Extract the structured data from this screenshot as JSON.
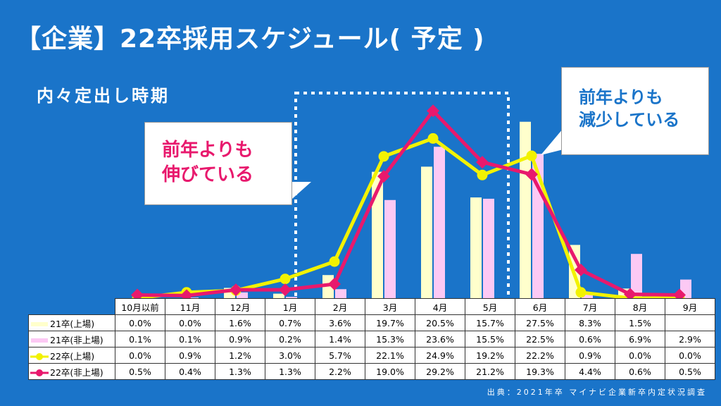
{
  "title": "【企業】22卒採用スケジュール( 予定 )",
  "subtitle": "内々定出し時期",
  "callouts": {
    "left": [
      "前年よりも",
      "伸びている"
    ],
    "right": [
      "前年よりも",
      "減少している"
    ]
  },
  "source": "出典：2021年卒 マイナビ企業新卒内定状況調査",
  "colors": {
    "background": "#1a74c9",
    "bar_21_listed": "#ffffcc",
    "bar_21_unlisted": "#fcc9f4",
    "line_22_listed": "#f2f200",
    "line_22_unlisted": "#e8196d"
  },
  "chart_data": {
    "type": "bar",
    "categories": [
      "10月以前",
      "11月",
      "12月",
      "1月",
      "2月",
      "3月",
      "4月",
      "5月",
      "6月",
      "7月",
      "8月",
      "9月"
    ],
    "series": [
      {
        "name": "21卒(上場)",
        "kind": "bar",
        "values": [
          0.0,
          0.0,
          1.6,
          0.7,
          3.6,
          19.7,
          20.5,
          15.7,
          27.5,
          8.3,
          1.5,
          null
        ],
        "labels": [
          "0.0%",
          "0.0%",
          "1.6%",
          "0.7%",
          "3.6%",
          "19.7%",
          "20.5%",
          "15.7%",
          "27.5%",
          "8.3%",
          "1.5%",
          ""
        ]
      },
      {
        "name": "21卒(非上場)",
        "kind": "bar",
        "values": [
          0.1,
          0.1,
          0.9,
          0.2,
          1.4,
          15.3,
          23.6,
          15.5,
          22.5,
          0.6,
          6.9,
          2.9
        ],
        "labels": [
          "0.1%",
          "0.1%",
          "0.9%",
          "0.2%",
          "1.4%",
          "15.3%",
          "23.6%",
          "15.5%",
          "22.5%",
          "0.6%",
          "6.9%",
          "2.9%"
        ]
      },
      {
        "name": "22卒(上場)",
        "kind": "line",
        "values": [
          0.0,
          0.9,
          1.2,
          3.0,
          5.7,
          22.1,
          24.9,
          19.2,
          22.2,
          0.9,
          0.0,
          0.0
        ],
        "labels": [
          "0.0%",
          "0.9%",
          "1.2%",
          "3.0%",
          "5.7%",
          "22.1%",
          "24.9%",
          "19.2%",
          "22.2%",
          "0.9%",
          "0.0%",
          "0.0%"
        ]
      },
      {
        "name": "22卒(非上場)",
        "kind": "line",
        "values": [
          0.5,
          0.4,
          1.3,
          1.3,
          2.2,
          19.0,
          29.2,
          21.2,
          19.3,
          4.4,
          0.6,
          0.5
        ],
        "labels": [
          "0.5%",
          "0.4%",
          "1.3%",
          "1.3%",
          "2.2%",
          "19.0%",
          "29.2%",
          "21.2%",
          "19.3%",
          "4.4%",
          "0.6%",
          "0.5%"
        ]
      }
    ],
    "highlight_categories": [
      "2月",
      "3月",
      "4月",
      "5月"
    ],
    "legend": "data-table",
    "grid": false
  }
}
